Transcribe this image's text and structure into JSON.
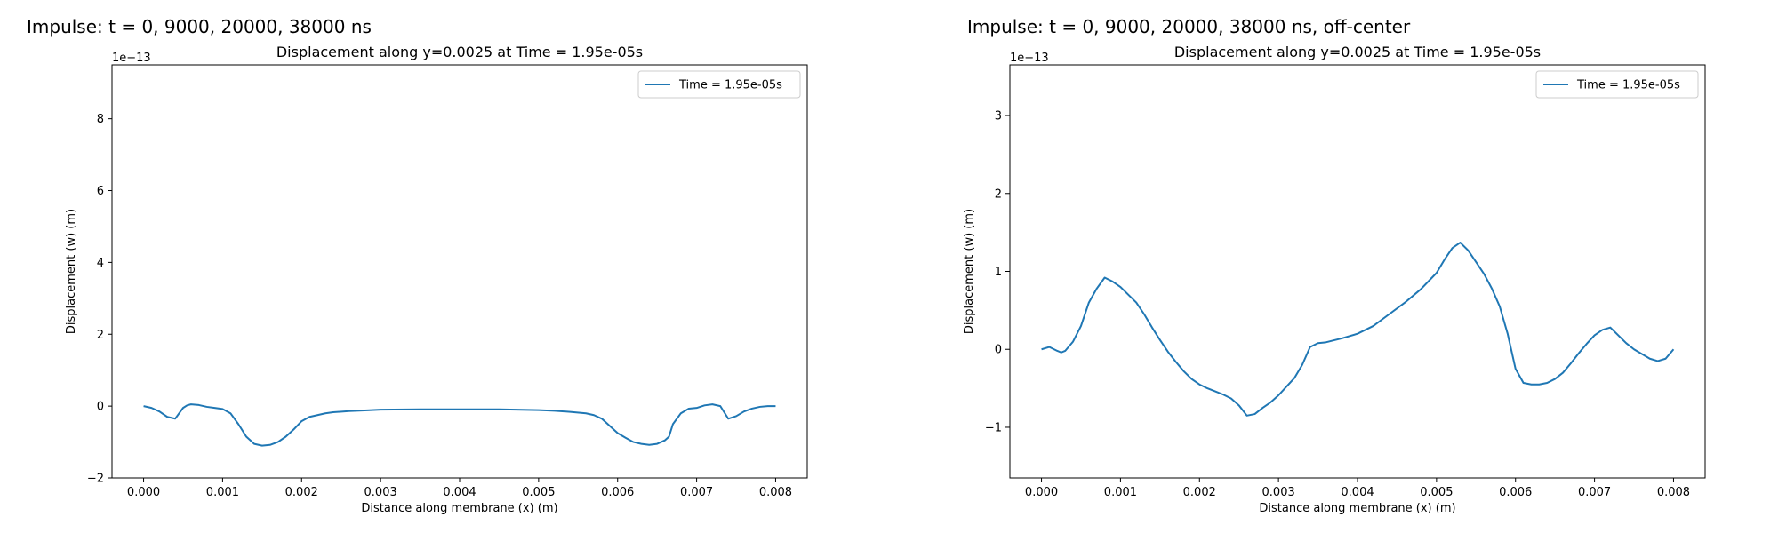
{
  "panels": [
    {
      "heading": "Impulse: t = 0, 9000, 20000, 38000 ns"
    },
    {
      "heading": "Impulse: t = 0, 9000, 20000, 38000 ns, off-center"
    }
  ],
  "chart_data": [
    {
      "type": "line",
      "title": "Displacement along y=0.0025 at Time = 1.95e-05s",
      "xlabel": "Distance along membrane (x) (m)",
      "ylabel": "Displacement (w) (m)",
      "y_offset_label": "1e−13",
      "xlim": [
        -0.0004,
        0.0084
      ],
      "ylim": [
        -2.0,
        9.5
      ],
      "xticks": [
        0.0,
        0.001,
        0.002,
        0.003,
        0.004,
        0.005,
        0.006,
        0.007,
        0.008
      ],
      "xtick_labels": [
        "0.000",
        "0.001",
        "0.002",
        "0.003",
        "0.004",
        "0.005",
        "0.006",
        "0.007",
        "0.008"
      ],
      "yticks": [
        -2,
        0,
        2,
        4,
        6,
        8
      ],
      "ytick_labels": [
        "−2",
        "0",
        "2",
        "4",
        "6",
        "8"
      ],
      "grid": false,
      "legend_position": "top-right",
      "series": [
        {
          "name": "Time = 1.95e-05s",
          "color": "#1f77b4",
          "x": [
            0.0,
            0.0001,
            0.0002,
            0.0003,
            0.0004,
            0.0005,
            0.00055,
            0.0006,
            0.0007,
            0.0008,
            0.0009,
            0.001,
            0.0011,
            0.0012,
            0.0013,
            0.00135,
            0.0014,
            0.0015,
            0.0016,
            0.0017,
            0.0018,
            0.0019,
            0.002,
            0.0021,
            0.0022,
            0.0023,
            0.0024,
            0.0026,
            0.0028,
            0.003,
            0.0035,
            0.004,
            0.0045,
            0.005,
            0.0052,
            0.0054,
            0.0056,
            0.0057,
            0.0058,
            0.0059,
            0.006,
            0.0061,
            0.0062,
            0.0063,
            0.0064,
            0.0065,
            0.0066,
            0.00665,
            0.0067,
            0.0068,
            0.0069,
            0.007,
            0.0071,
            0.0072,
            0.0073,
            0.0074,
            0.0075,
            0.0076,
            0.0077,
            0.0078,
            0.0079,
            0.008
          ],
          "y": [
            0.0,
            -0.05,
            -0.15,
            -0.3,
            -0.35,
            -0.05,
            0.02,
            0.05,
            0.03,
            -0.02,
            -0.05,
            -0.08,
            -0.2,
            -0.5,
            -0.85,
            -0.95,
            -1.05,
            -1.1,
            -1.08,
            -1.0,
            -0.85,
            -0.65,
            -0.42,
            -0.3,
            -0.25,
            -0.2,
            -0.17,
            -0.14,
            -0.12,
            -0.1,
            -0.09,
            -0.09,
            -0.09,
            -0.11,
            -0.13,
            -0.16,
            -0.2,
            -0.25,
            -0.35,
            -0.55,
            -0.75,
            -0.88,
            -1.0,
            -1.05,
            -1.08,
            -1.05,
            -0.95,
            -0.85,
            -0.5,
            -0.2,
            -0.07,
            -0.05,
            0.02,
            0.05,
            0.0,
            -0.35,
            -0.28,
            -0.15,
            -0.07,
            -0.02,
            0.0,
            0.0
          ]
        }
      ]
    },
    {
      "type": "line",
      "title": "Displacement along y=0.0025 at Time = 1.95e-05s",
      "xlabel": "Distance along membrane (x) (m)",
      "ylabel": "Displacement (w) (m)",
      "y_offset_label": "1e−13",
      "xlim": [
        -0.0004,
        0.0084
      ],
      "ylim": [
        -1.65,
        3.65
      ],
      "xticks": [
        0.0,
        0.001,
        0.002,
        0.003,
        0.004,
        0.005,
        0.006,
        0.007,
        0.008
      ],
      "xtick_labels": [
        "0.000",
        "0.001",
        "0.002",
        "0.003",
        "0.004",
        "0.005",
        "0.006",
        "0.007",
        "0.008"
      ],
      "yticks": [
        -1,
        0,
        1,
        2,
        3
      ],
      "ytick_labels": [
        "−1",
        "0",
        "1",
        "2",
        "3"
      ],
      "grid": false,
      "legend_position": "top-right",
      "series": [
        {
          "name": "Time = 1.95e-05s",
          "color": "#1f77b4",
          "x": [
            0.0,
            0.0001,
            0.0002,
            0.00025,
            0.0003,
            0.0004,
            0.0005,
            0.0006,
            0.0007,
            0.0008,
            0.0009,
            0.001,
            0.0011,
            0.0012,
            0.0013,
            0.0014,
            0.0015,
            0.0016,
            0.0017,
            0.0018,
            0.0019,
            0.002,
            0.0021,
            0.0022,
            0.0023,
            0.0024,
            0.0025,
            0.0026,
            0.0027,
            0.0028,
            0.0029,
            0.003,
            0.0031,
            0.0032,
            0.0033,
            0.0034,
            0.0035,
            0.0036,
            0.0038,
            0.004,
            0.0042,
            0.0044,
            0.0046,
            0.0048,
            0.005,
            0.0051,
            0.0052,
            0.0053,
            0.0054,
            0.0055,
            0.0056,
            0.0057,
            0.0058,
            0.0059,
            0.006,
            0.0061,
            0.0062,
            0.0063,
            0.0064,
            0.0065,
            0.0066,
            0.0067,
            0.0068,
            0.0069,
            0.007,
            0.0071,
            0.0072,
            0.0073,
            0.0074,
            0.0075,
            0.0076,
            0.0077,
            0.0078,
            0.0079,
            0.008
          ],
          "y": [
            0.0,
            0.03,
            -0.02,
            -0.04,
            -0.02,
            0.1,
            0.3,
            0.6,
            0.78,
            0.92,
            0.87,
            0.8,
            0.7,
            0.6,
            0.45,
            0.28,
            0.12,
            -0.03,
            -0.16,
            -0.28,
            -0.38,
            -0.45,
            -0.5,
            -0.54,
            -0.58,
            -0.63,
            -0.72,
            -0.85,
            -0.83,
            -0.75,
            -0.68,
            -0.59,
            -0.48,
            -0.37,
            -0.2,
            0.03,
            0.08,
            0.09,
            0.14,
            0.2,
            0.3,
            0.45,
            0.6,
            0.77,
            0.98,
            1.15,
            1.3,
            1.37,
            1.27,
            1.12,
            0.97,
            0.78,
            0.55,
            0.2,
            -0.25,
            -0.43,
            -0.45,
            -0.45,
            -0.43,
            -0.38,
            -0.3,
            -0.18,
            -0.05,
            0.07,
            0.18,
            0.25,
            0.28,
            0.18,
            0.08,
            0.0,
            -0.06,
            -0.12,
            -0.15,
            -0.12,
            0.0
          ]
        }
      ]
    }
  ]
}
